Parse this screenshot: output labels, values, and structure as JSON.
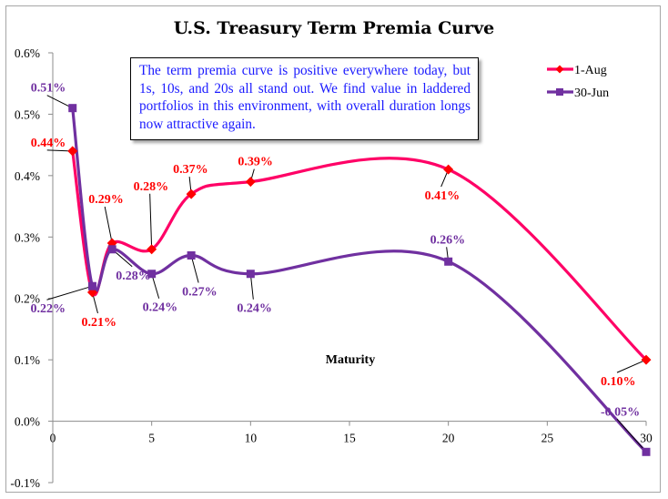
{
  "chart_data": {
    "type": "line",
    "title": "U.S. Treasury Term Premia Curve",
    "xlabel": "Maturity",
    "ylabel": "",
    "xlim": [
      0,
      30
    ],
    "ylim": [
      -0.1,
      0.6
    ],
    "x_ticks": [
      0,
      5,
      10,
      15,
      20,
      25,
      30
    ],
    "x_tick_labels": [
      "0",
      "5",
      "10",
      "15",
      "20",
      "25",
      "30"
    ],
    "y_ticks": [
      -0.1,
      0.0,
      0.1,
      0.2,
      0.3,
      0.4,
      0.5,
      0.6
    ],
    "y_tick_labels": [
      "-0.1%",
      "0.0%",
      "0.1%",
      "0.2%",
      "0.3%",
      "0.4%",
      "0.5%",
      "0.6%"
    ],
    "grid": false,
    "smoothed": true,
    "legend_position": "top-right",
    "series": [
      {
        "name": "1-Aug",
        "color": "#ff0066",
        "marker_color": "#ff0000",
        "marker": "diamond",
        "label_color": "#ff0000",
        "x": [
          1,
          2,
          3,
          5,
          7,
          10,
          20,
          30
        ],
        "values": [
          0.44,
          0.21,
          0.29,
          0.28,
          0.37,
          0.39,
          0.41,
          0.1
        ],
        "labels": [
          "0.44%",
          "0.21%",
          "0.29%",
          "0.28%",
          "0.37%",
          "0.39%",
          "0.41%",
          "0.10%"
        ]
      },
      {
        "name": "30-Jun",
        "color": "#7030a0",
        "marker_color": "#7030a0",
        "marker": "square",
        "label_color": "#7030a0",
        "x": [
          1,
          2,
          3,
          5,
          7,
          10,
          20,
          30
        ],
        "values": [
          0.51,
          0.22,
          0.28,
          0.24,
          0.27,
          0.24,
          0.26,
          -0.05
        ],
        "labels": [
          "0.51%",
          "0.22%",
          "0.28%",
          "0.24%",
          "0.27%",
          "0.24%",
          "0.26%",
          "-0.05%"
        ]
      }
    ],
    "annotation": "The term premia curve is positive everywhere today, but 1s, 10s, and 20s all stand out. We find value in laddered portfolios in this environment, with overall duration longs now attractive again."
  }
}
